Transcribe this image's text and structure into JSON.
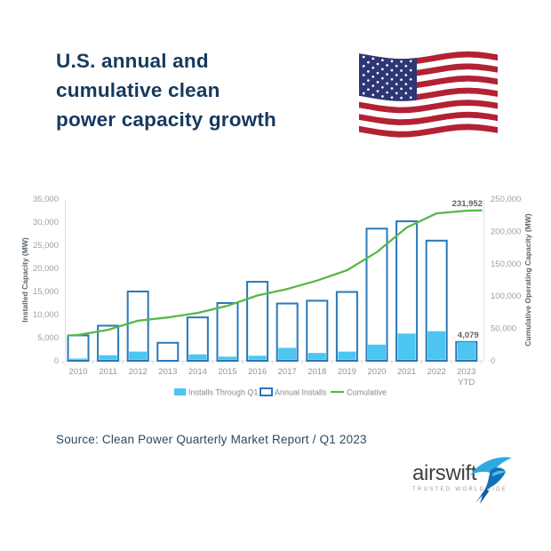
{
  "page": {
    "title_lines": [
      "U.S. annual and",
      "cumulative clean",
      "power capacity growth"
    ],
    "source": "Source: Clean Power Quarterly Market Report / Q1 2023"
  },
  "icons": {
    "flag": "us-flag",
    "logo_bird": "swift-bird-icon"
  },
  "logo": {
    "brand": "airswift",
    "tagline": "TRUSTED WORLDWIDE"
  },
  "chart_data": {
    "type": "bar",
    "subtype": "stacked-bar-with-line-combo",
    "categories": [
      "2010",
      "2011",
      "2012",
      "2013",
      "2014",
      "2015",
      "2016",
      "2017",
      "2018",
      "2019",
      "2020",
      "2021",
      "2022",
      "2023 YTD"
    ],
    "series": [
      {
        "name": "Installs Through Q1",
        "type": "bar-fill",
        "axis": "left",
        "color": "#4CC5F1",
        "values": [
          500,
          1200,
          2000,
          50,
          1400,
          900,
          1100,
          2800,
          1700,
          2000,
          3500,
          5900,
          6400,
          4079
        ]
      },
      {
        "name": "Annual Installs",
        "type": "bar-outline",
        "axis": "left",
        "color": "#2878B8",
        "values": [
          5500,
          7600,
          15000,
          3900,
          9400,
          12500,
          17100,
          12400,
          13000,
          14900,
          28600,
          30200,
          26000,
          4079
        ]
      },
      {
        "name": "Cumulative",
        "type": "line",
        "axis": "right",
        "color": "#57B847",
        "values": [
          40000,
          48000,
          62000,
          67000,
          74000,
          85000,
          101000,
          111000,
          124000,
          140000,
          168000,
          206000,
          227873,
          231952
        ]
      }
    ],
    "left_axis": {
      "label": "Installed Capacity (MW)",
      "min": 0,
      "max": 35000,
      "tick_step": 5000
    },
    "right_axis": {
      "label": "Cumulative Operating Capacity (MW)",
      "min": 0,
      "max": 250000,
      "tick_step": 50000
    },
    "annotations": {
      "cumulative_end": "231,952",
      "ytd_bar": "4,079"
    },
    "legend": [
      "Installs Through Q1",
      "Annual Installs",
      "Cumulative"
    ],
    "legend_position": "bottom-center",
    "grid": false,
    "colors": {
      "tick_label": "#9BA1A6",
      "axis_title": "#5A646D",
      "axis_line": "#E0E3E6",
      "annotation": "#5A646D",
      "legend_text": "#83898F",
      "year_label": "#8F969C"
    }
  }
}
